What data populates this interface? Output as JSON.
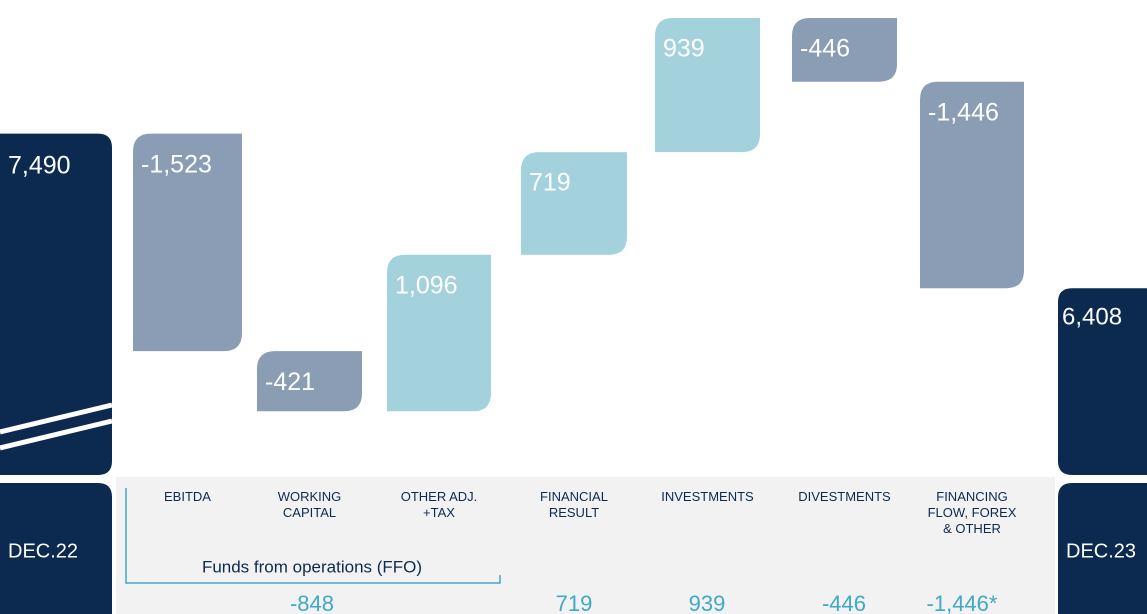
{
  "chart_data": {
    "type": "waterfall",
    "start": {
      "label": "DEC.22",
      "value": 7490,
      "value_label": "7,490"
    },
    "end": {
      "label": "DEC.23",
      "value": 6408,
      "value_label": "6,408"
    },
    "categories": [
      "EBITDA",
      "WORKING CAPITAL",
      "OTHER ADJ. +TAX",
      "FINANCIAL RESULT",
      "INVESTMENTS",
      "DIVESTMENTS",
      "FINANCING FLOW, FOREX & OTHER"
    ],
    "values": [
      -1523,
      -421,
      1096,
      719,
      939,
      -446,
      -1446
    ],
    "value_labels": [
      "-1,523",
      "-421",
      "1,096",
      "719",
      "939",
      "-446",
      "-1,446"
    ],
    "colors": {
      "total": "#0c2a50",
      "decrease": "#8a9db4",
      "increase": "#a4d2dc",
      "summary": "#3fa9c6"
    },
    "ylim": [
      5100,
      8300
    ],
    "annotation": "Funds from operations (FFO)",
    "summary": {
      "values": [
        -848,
        719,
        939,
        -446,
        -1446
      ],
      "value_labels": [
        "-848",
        "719",
        "939",
        "-446",
        "-1,446*"
      ]
    }
  }
}
